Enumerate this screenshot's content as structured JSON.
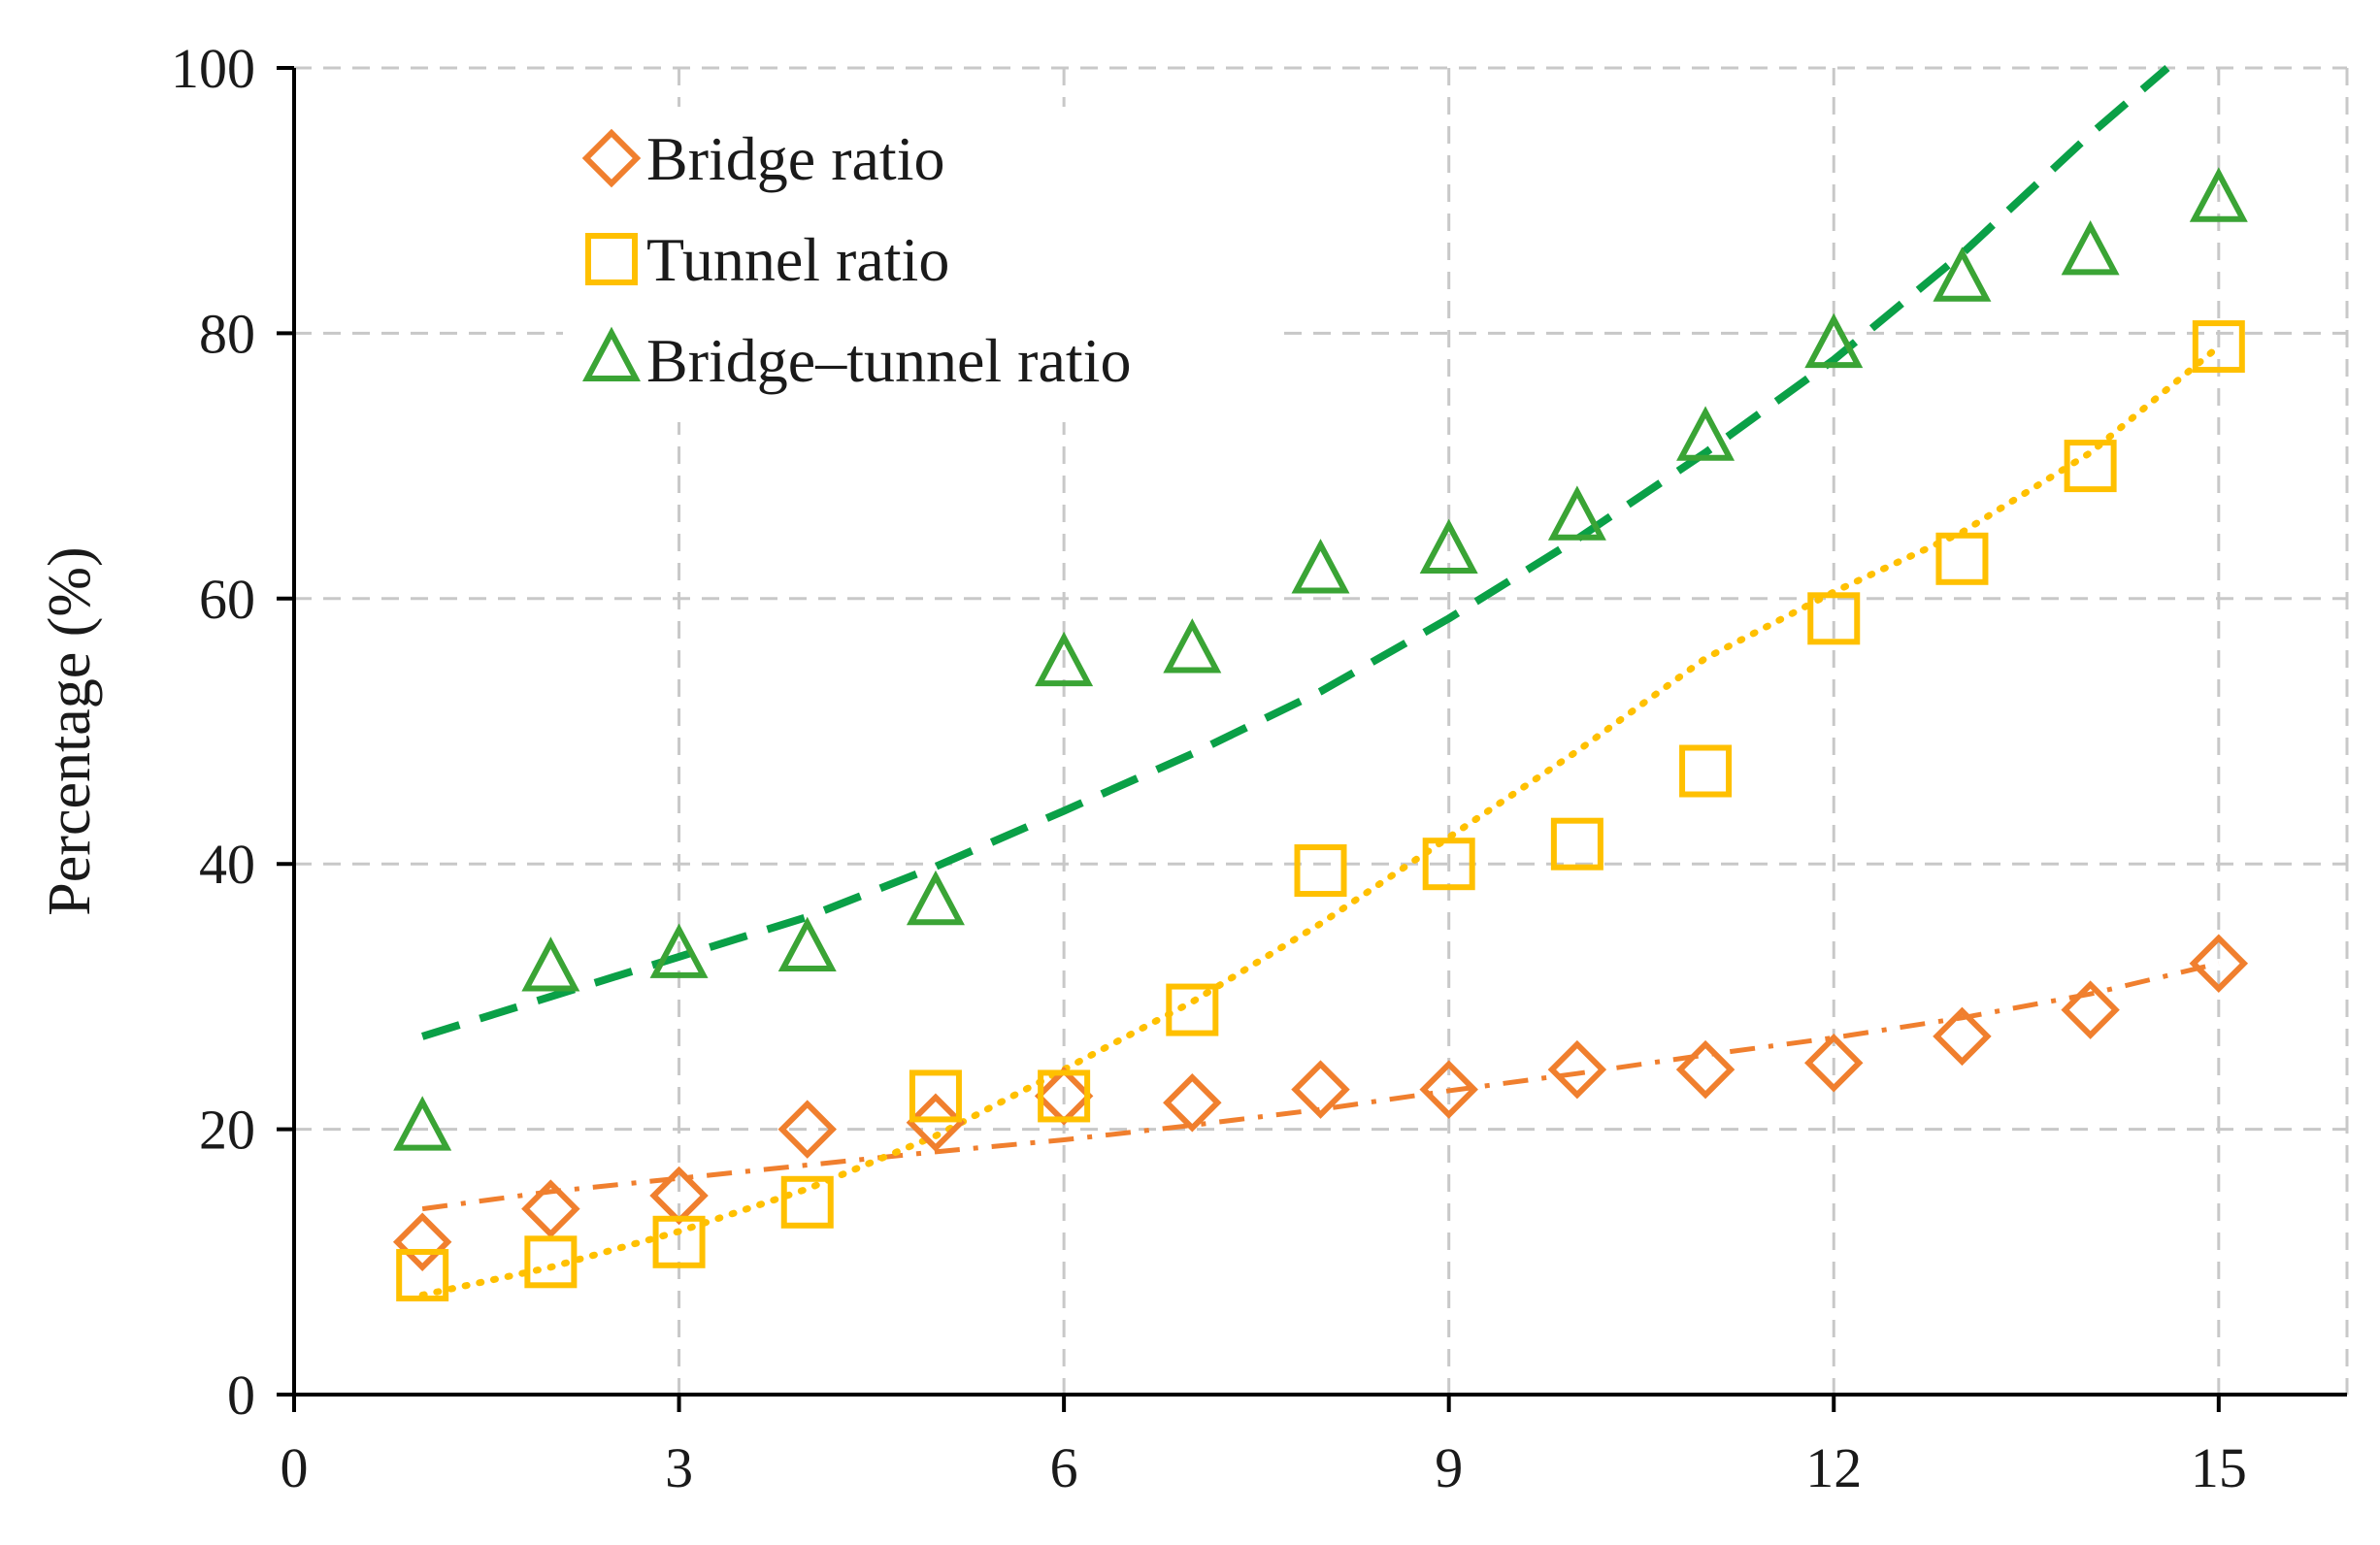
{
  "chart_data": {
    "type": "scatter",
    "title": "",
    "xlabel": "",
    "ylabel": "Percentage (%)",
    "xlim": [
      0,
      16
    ],
    "ylim": [
      0,
      100
    ],
    "xticks": [
      0,
      3,
      6,
      9,
      12,
      15
    ],
    "yticks": [
      0,
      20,
      40,
      60,
      80,
      100
    ],
    "xtick_labels": [
      "0",
      "3",
      "6",
      "9",
      "12",
      "15"
    ],
    "ytick_labels": [
      "0",
      "20",
      "40",
      "60",
      "80",
      "100"
    ],
    "grid": true,
    "legend_position": "top-left",
    "x": [
      1,
      2,
      3,
      4,
      5,
      6,
      7,
      8,
      9,
      10,
      11,
      12,
      13,
      14,
      15
    ],
    "series": [
      {
        "name": "Bridge ratio",
        "marker": "diamond",
        "color": "#f07f2e",
        "trend_style": "dash-dot",
        "values": [
          11.5,
          14,
          15,
          20,
          20.5,
          22.5,
          22,
          23,
          23,
          24.5,
          24.5,
          25,
          27,
          29,
          32.5
        ],
        "trend": [
          14,
          15.3,
          16.3,
          17.3,
          18.3,
          19.2,
          20.3,
          21.5,
          22.9,
          24.2,
          25.6,
          26.9,
          28.4,
          30.2,
          32.5
        ]
      },
      {
        "name": "Tunnel ratio",
        "marker": "square",
        "color": "#ffc000",
        "trend_style": "dotted",
        "values": [
          9,
          10,
          11.5,
          14.5,
          22.5,
          22.5,
          29,
          39.5,
          40,
          41.5,
          47,
          58.5,
          63,
          70,
          79
        ],
        "trend": [
          7.5,
          9.6,
          12.3,
          15.5,
          19.5,
          24.5,
          29.6,
          35.5,
          42,
          48.5,
          55.5,
          60.5,
          65,
          71,
          79
        ]
      },
      {
        "name": "Bridge–tunnel ratio",
        "marker": "triangle",
        "color": "#3aa435",
        "trend_color": "#0aa047",
        "trend_style": "dashed",
        "values": [
          20,
          32,
          33,
          33.5,
          37,
          55,
          56,
          62,
          63.5,
          66,
          72,
          79,
          84,
          86,
          90
        ],
        "trend": [
          27,
          30,
          33,
          36,
          39.8,
          44,
          48.3,
          53,
          58.5,
          64.5,
          71,
          78,
          86,
          95,
          100
        ],
        "trend_x_end": 14.6
      }
    ]
  }
}
